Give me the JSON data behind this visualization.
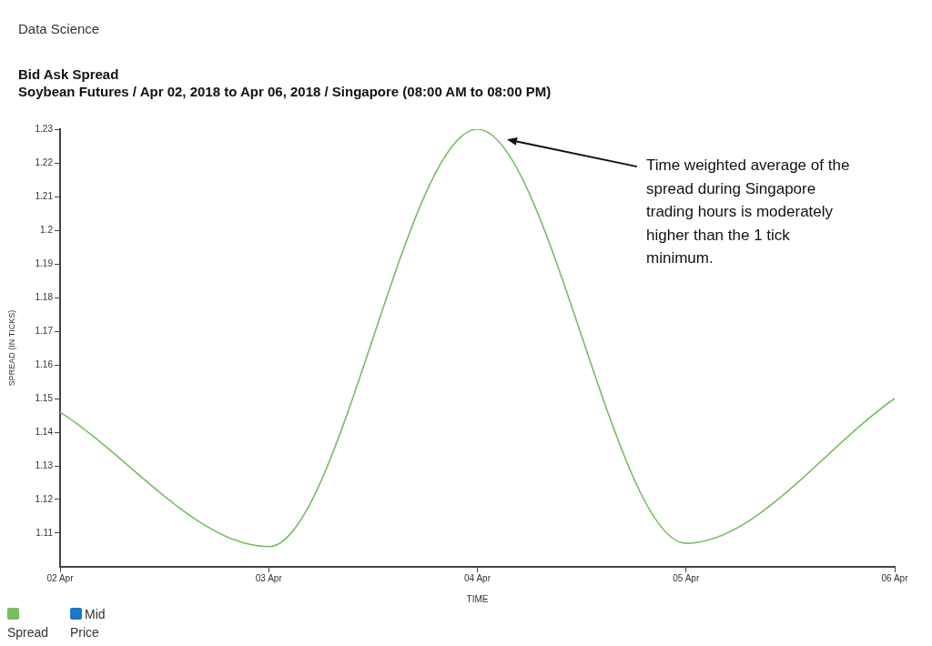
{
  "chart_data": {
    "type": "line",
    "title": "Bid Ask Spread",
    "subtitle": "Soybean Futures / Apr 02, 2018 to Apr 06, 2018 / Singapore (08:00 AM to 08:00 PM)",
    "xlabel": "TIME",
    "ylabel": "SPREAD (IN TICKS)",
    "x": [
      "2018-04-02",
      "2018-04-03",
      "2018-04-04",
      "2018-04-05",
      "2018-04-06"
    ],
    "series": [
      {
        "name": "Spread",
        "color": "#76bd63",
        "values": [
          1.146,
          1.106,
          1.23,
          1.107,
          1.15
        ]
      },
      {
        "name": "Mid Price",
        "color": "#1b78c9",
        "values": [
          null,
          null,
          null,
          null,
          null
        ]
      }
    ],
    "xlim": [
      "2018-04-02",
      "2018-04-06"
    ],
    "xticks": [
      {
        "value": "2018-04-02",
        "label": "02 Apr"
      },
      {
        "value": "2018-04-03",
        "label": "03 Apr"
      },
      {
        "value": "2018-04-04",
        "label": "04 Apr"
      },
      {
        "value": "2018-04-05",
        "label": "05 Apr"
      },
      {
        "value": "2018-04-06",
        "label": "06 Apr"
      }
    ],
    "ylim": [
      1.1,
      1.23
    ],
    "yticks": [
      1.11,
      1.12,
      1.13,
      1.14,
      1.15,
      1.16,
      1.17,
      1.18,
      1.19,
      1.2,
      1.21,
      1.22,
      1.23
    ],
    "legend": "bottom",
    "annotations": [
      "Data Science",
      "Time weighted average of the spread during Singapore trading hours is moderately higher than the 1 tick minimum."
    ]
  }
}
